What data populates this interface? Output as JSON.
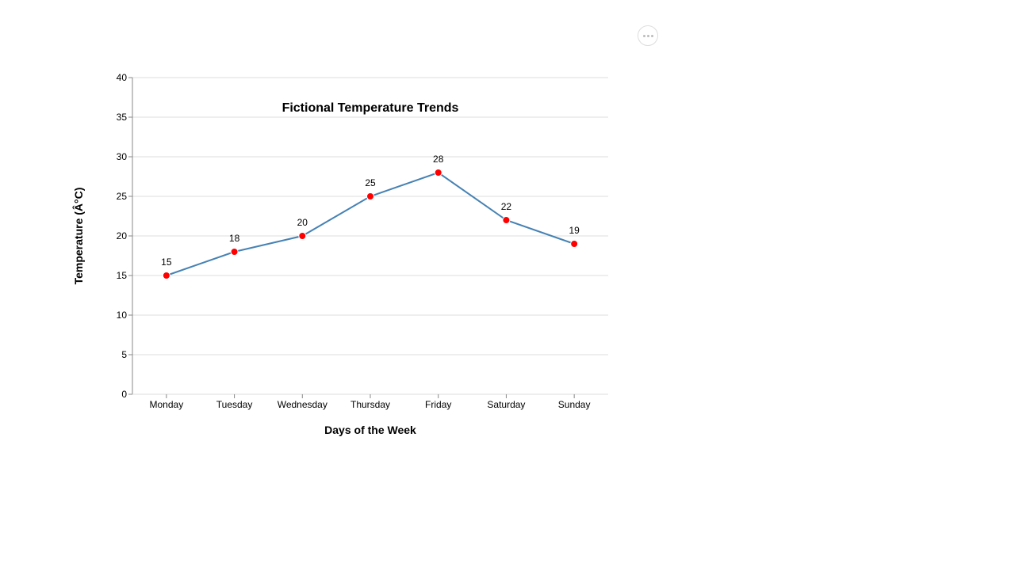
{
  "chart_data": {
    "type": "line",
    "title": "Fictional Temperature Trends",
    "xlabel": "Days of the Week",
    "ylabel": "Temperature (Â°C)",
    "categories": [
      "Monday",
      "Tuesday",
      "Wednesday",
      "Thursday",
      "Friday",
      "Saturday",
      "Sunday"
    ],
    "series": [
      {
        "values": [
          15,
          18,
          20,
          25,
          28,
          22,
          19
        ]
      }
    ],
    "data_labels": [
      "15",
      "18",
      "20",
      "25",
      "28",
      "22",
      "19"
    ],
    "ylim": [
      0,
      40
    ],
    "yticks": [
      0,
      5,
      10,
      15,
      20,
      25,
      30,
      35,
      40
    ],
    "ytick_labels": [
      "0",
      "5",
      "10",
      "15",
      "20",
      "25",
      "30",
      "35",
      "40"
    ],
    "grid": true,
    "line_color": "#4682b4",
    "point_color": "#ff0000"
  },
  "actions_menu": {
    "icon": "more-horizontal-icon"
  }
}
